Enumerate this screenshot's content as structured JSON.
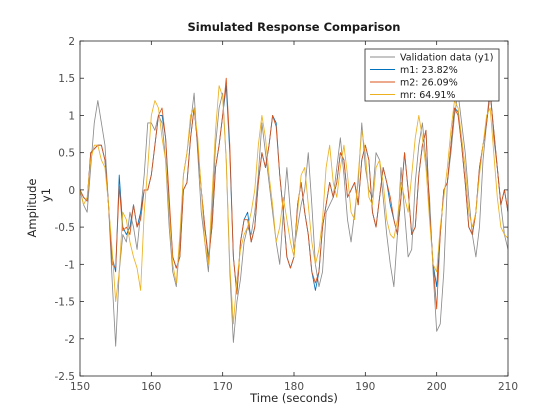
{
  "chart_data": {
    "type": "line",
    "title": "Simulated Response Comparison",
    "xlabel": "Time (seconds)",
    "ylabel": "Amplitude",
    "channel_label": "y1",
    "xlim": [
      150,
      210
    ],
    "ylim": [
      -2.5,
      2
    ],
    "xticks": [
      150,
      160,
      170,
      180,
      190,
      200,
      210
    ],
    "yticks": [
      -2.5,
      -2,
      -1.5,
      -1,
      -0.5,
      0,
      0.5,
      1,
      1.5,
      2
    ],
    "ytick_labels": [
      "-2.5",
      "-2",
      "-1.5",
      "-1",
      "-0.5",
      "0",
      "0.5",
      "1",
      "1.5",
      "2"
    ],
    "grid": false,
    "legend_position": "top-right",
    "x": [
      150,
      150.5,
      151,
      151.5,
      152,
      152.5,
      153,
      153.5,
      154,
      154.5,
      155,
      155.5,
      156,
      156.5,
      157,
      157.5,
      158,
      158.5,
      159,
      159.5,
      160,
      160.5,
      161,
      161.5,
      162,
      162.5,
      163,
      163.5,
      164,
      164.5,
      165,
      165.5,
      166,
      166.5,
      167,
      167.5,
      168,
      168.5,
      169,
      169.5,
      170,
      170.5,
      171,
      171.5,
      172,
      172.5,
      173,
      173.5,
      174,
      174.5,
      175,
      175.5,
      176,
      176.5,
      177,
      177.5,
      178,
      178.5,
      179,
      179.5,
      180,
      180.5,
      181,
      181.5,
      182,
      182.5,
      183,
      183.5,
      184,
      184.5,
      185,
      185.5,
      186,
      186.5,
      187,
      187.5,
      188,
      188.5,
      189,
      189.5,
      190,
      190.5,
      191,
      191.5,
      192,
      192.5,
      193,
      193.5,
      194,
      194.5,
      195,
      195.5,
      196,
      196.5,
      197,
      197.5,
      198,
      198.5,
      199,
      199.5,
      200,
      200.5,
      201,
      201.5,
      202,
      202.5,
      203,
      203.5,
      204,
      204.5,
      205,
      205.5,
      206,
      206.5,
      207,
      207.5,
      208,
      208.5,
      209,
      209.5,
      210
    ],
    "series": [
      {
        "name": "Validation data (y1)",
        "color": "#8c8c8c",
        "values": [
          0,
          -0.2,
          -0.3,
          0.3,
          0.9,
          1.2,
          0.9,
          0.6,
          -0.2,
          -1.2,
          -2.1,
          -1.1,
          -0.6,
          -0.7,
          -0.3,
          -0.5,
          -0.8,
          -0.3,
          0.2,
          0.9,
          0.9,
          0.8,
          1,
          0.9,
          0.4,
          -0.5,
          -1.1,
          -1.3,
          -0.7,
          0.2,
          0.5,
          0.9,
          1.3,
          0.5,
          -0.3,
          -0.7,
          -1.1,
          -0.3,
          0.6,
          1.1,
          1.3,
          0.4,
          -1.1,
          -2.05,
          -1.5,
          -1.2,
          -0.7,
          -0.5,
          -0.6,
          -0.3,
          0.2,
          0.9,
          0.5,
          0.1,
          -0.3,
          -0.7,
          -1,
          -0.3,
          0.3,
          -0.3,
          -0.8,
          -0.5,
          -0.2,
          0,
          0.5,
          -0.2,
          -1,
          -1.3,
          -1.1,
          -0.3,
          -0.2,
          -0.1,
          0.3,
          0.7,
          0.2,
          -0.4,
          -0.7,
          -0.3,
          0.1,
          0.9,
          0.3,
          0,
          -0.1,
          0.5,
          0.4,
          -0.1,
          -0.6,
          -1,
          -1.3,
          -0.6,
          0.3,
          -0.3,
          -0.9,
          -0.8,
          0.1,
          0.6,
          0.9,
          0.4,
          -0.1,
          -1.1,
          -1.9,
          -1.8,
          -1.1,
          0.1,
          0.5,
          1,
          1.3,
          0.9,
          0.5,
          -0.1,
          -0.6,
          -0.9,
          -0.5,
          0.4,
          0.9,
          1.4,
          0.7,
          0.3,
          -0.2,
          -0.6,
          -0.8
        ]
      },
      {
        "name": "m1: 23.82%",
        "color": "#0072bd",
        "values": [
          0,
          -0.1,
          -0.15,
          0.5,
          0.55,
          0.6,
          0.6,
          0.4,
          -0.2,
          -0.9,
          -1.1,
          0.2,
          -0.5,
          -0.6,
          -0.5,
          -0.2,
          -0.5,
          -0.3,
          0,
          0,
          0.2,
          0.6,
          1,
          1,
          0.7,
          -0.2,
          -0.9,
          -1.05,
          -0.9,
          0,
          0.1,
          0.7,
          1.1,
          0.6,
          0,
          -0.5,
          -0.9,
          -0.5,
          0.3,
          0.6,
          1,
          1.4,
          0.5,
          -0.9,
          -1.4,
          -0.7,
          -0.4,
          -0.3,
          -0.7,
          -0.5,
          0.1,
          0.5,
          0.3,
          0.6,
          1,
          0.9,
          0.2,
          -0.3,
          -0.9,
          -1.05,
          -0.9,
          -0.2,
          0.1,
          -0.3,
          -0.6,
          -1.1,
          -1.35,
          -1.1,
          -0.5,
          -0.2,
          0.1,
          -0.1,
          0.1,
          0.5,
          0.4,
          -0.1,
          0,
          0.1,
          -0.2,
          0.4,
          0.6,
          0.4,
          -0.3,
          -0.5,
          -0.1,
          0.3,
          0.1,
          -0.2,
          -0.4,
          -0.6,
          -0.1,
          0.5,
          0,
          -0.6,
          -0.5,
          0.2,
          0.6,
          0.8,
          -0.3,
          -1,
          -1.3,
          -0.6,
          0,
          0.1,
          0.6,
          1.1,
          1.05,
          0.6,
          0.1,
          -0.5,
          -0.6,
          -0.3,
          0.3,
          0.6,
          0.9,
          1.3,
          0.8,
          0.3,
          -0.2,
          0,
          -0.3
        ]
      },
      {
        "name": "m2: 26.09%",
        "color": "#d95319",
        "values": [
          0,
          -0.1,
          -0.15,
          0.5,
          0.55,
          0.6,
          0.6,
          0.4,
          -0.2,
          -1,
          -1.05,
          0.05,
          -0.55,
          -0.5,
          -0.6,
          -0.2,
          -0.5,
          -0.4,
          0,
          0,
          0.2,
          0.6,
          1,
          1.1,
          0.7,
          -0.1,
          -0.9,
          -1.05,
          -0.9,
          0,
          0.1,
          0.7,
          1.1,
          0.6,
          0,
          -0.5,
          -0.95,
          -0.5,
          0.3,
          0.6,
          1,
          1.5,
          0.6,
          -0.9,
          -1.4,
          -0.7,
          -0.4,
          -0.4,
          -0.7,
          -0.5,
          0.1,
          0.5,
          0.3,
          0.6,
          1,
          0.85,
          0.2,
          -0.3,
          -0.9,
          -1.05,
          -0.9,
          -0.2,
          0.1,
          -0.3,
          -0.6,
          -1.1,
          -1.25,
          -1.1,
          -0.5,
          -0.2,
          0.1,
          -0.1,
          0.1,
          0.5,
          0.4,
          -0.1,
          0,
          0.1,
          -0.2,
          0.4,
          0.6,
          0.4,
          -0.3,
          -0.5,
          -0.1,
          0.3,
          0.1,
          -0.1,
          -0.4,
          -0.6,
          -0.1,
          0.5,
          0,
          -0.6,
          -0.5,
          0.2,
          0.6,
          0.8,
          -0.3,
          -1,
          -1.6,
          -0.6,
          0,
          0.1,
          0.6,
          1.1,
          1,
          0.6,
          0.1,
          -0.5,
          -0.6,
          -0.3,
          0.3,
          0.6,
          0.9,
          1.3,
          0.8,
          0.3,
          -0.2,
          0,
          -0.3
        ]
      },
      {
        "name": "mr: 64.91%",
        "color": "#edb120",
        "values": [
          0,
          -0.2,
          -0.1,
          0.4,
          0.6,
          0.6,
          0.4,
          0.3,
          -0.2,
          -0.8,
          -1.5,
          -1.1,
          -0.3,
          -0.4,
          -0.7,
          -0.9,
          -1.05,
          -1.35,
          -0.3,
          0.3,
          1,
          1.2,
          1.1,
          0.7,
          0.4,
          -0.3,
          -1,
          -1.25,
          -0.6,
          0.2,
          0.5,
          1,
          1.1,
          0.7,
          0,
          -0.7,
          -1,
          -0.1,
          0.8,
          1.4,
          1.25,
          0.4,
          -1,
          -1.8,
          -1.2,
          -0.8,
          -0.6,
          -0.5,
          -0.3,
          0,
          0.6,
          1,
          0.7,
          0.2,
          -0.2,
          -0.7,
          -0.5,
          -0.1,
          -0.4,
          -0.7,
          -0.9,
          -0.3,
          0.2,
          0.3,
          -0.2,
          -0.7,
          -1,
          -0.8,
          -0.4,
          0.3,
          0.6,
          0.1,
          -0.1,
          0.3,
          0.6,
          0.2,
          -0.3,
          -0.4,
          0.2,
          0.8,
          0.5,
          -0.1,
          -0.2,
          0.3,
          0.4,
          0.1,
          -0.4,
          -0.6,
          -0.65,
          -0.4,
          0.1,
          -0.1,
          -0.3,
          0.2,
          0.7,
          1,
          0.7,
          0.3,
          -0.4,
          -1,
          -1.1,
          -0.5,
          -0.1,
          0.3,
          0.8,
          1.2,
          1.1,
          0.7,
          0.3,
          -0.3,
          -0.5,
          -0.3,
          0.2,
          0.6,
          1,
          1.1,
          0.5,
          -0.1,
          -0.5,
          -0.6,
          -0.65
        ]
      }
    ]
  }
}
